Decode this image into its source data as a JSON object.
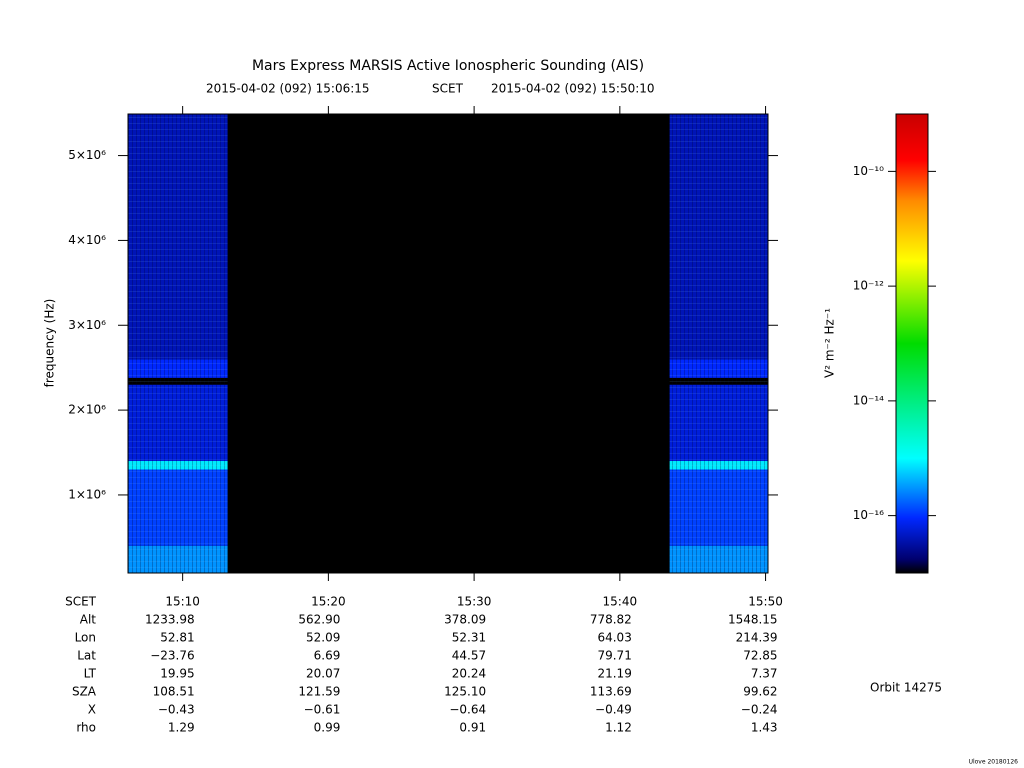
{
  "chart_data": {
    "type": "spectrogram",
    "title": "Mars Express MARSIS Active Ionospheric Sounding (AIS)",
    "time_label": "SCET",
    "xlim": [
      "2015-04-02 (092) 15:06:15",
      "2015-04-02 (092) 15:50:10"
    ],
    "xticks": [
      "15:10",
      "15:20",
      "15:30",
      "15:40",
      "15:50"
    ],
    "ylabel": "frequency (Hz)",
    "ylim": [
      80000,
      5490000
    ],
    "yticks": [
      {
        "value": 1000000,
        "label": "1×10⁶"
      },
      {
        "value": 2000000,
        "label": "2×10⁶"
      },
      {
        "value": 3000000,
        "label": "3×10⁶"
      },
      {
        "value": 4000000,
        "label": "4×10⁶"
      },
      {
        "value": 5000000,
        "label": "5×10⁶"
      }
    ],
    "coverage": [
      [
        "15:06:15",
        "15:13:05"
      ],
      [
        "15:43:25",
        "15:50:10"
      ]
    ],
    "heatmap": {
      "freq_edges": [
        80000,
        400000,
        1300000,
        1400000,
        2300000,
        2380000,
        2600000,
        5490000
      ],
      "z": [
        3e-16,
        1.2e-16,
        8e-16,
        6e-17,
        1e-17,
        9e-17,
        4e-17
      ]
    },
    "colorbar": {
      "label": "V² m⁻² Hz⁻¹",
      "zlim": [
        1e-17,
        1e-09
      ],
      "log": true,
      "zticks": [
        {
          "value": 1e-16,
          "label": "10⁻¹⁶"
        },
        {
          "value": 1e-14,
          "label": "10⁻¹⁴"
        },
        {
          "value": 1e-12,
          "label": "10⁻¹²"
        },
        {
          "value": 1e-10,
          "label": "10⁻¹⁰"
        }
      ]
    },
    "ephemeris": [
      {
        "label": "Alt",
        "values": [
          "1233.98",
          "562.90",
          "378.09",
          "778.82",
          "1548.15"
        ]
      },
      {
        "label": "Lon",
        "values": [
          "52.81",
          "52.09",
          "52.31",
          "64.03",
          "214.39"
        ]
      },
      {
        "label": "Lat",
        "values": [
          "−23.76",
          "6.69",
          "44.57",
          "79.71",
          "72.85"
        ]
      },
      {
        "label": "LT",
        "values": [
          "19.95",
          "20.07",
          "20.24",
          "21.19",
          "7.37"
        ]
      },
      {
        "label": "SZA",
        "values": [
          "108.51",
          "121.59",
          "125.10",
          "113.69",
          "99.62"
        ]
      },
      {
        "label": "X",
        "values": [
          "−0.43",
          "−0.61",
          "−0.64",
          "−0.49",
          "−0.24"
        ]
      },
      {
        "label": "rho",
        "values": [
          "1.29",
          "0.99",
          "0.91",
          "1.12",
          "1.43"
        ]
      }
    ],
    "orbit": "Orbit 14275",
    "footer": "Ulove 20180126"
  }
}
